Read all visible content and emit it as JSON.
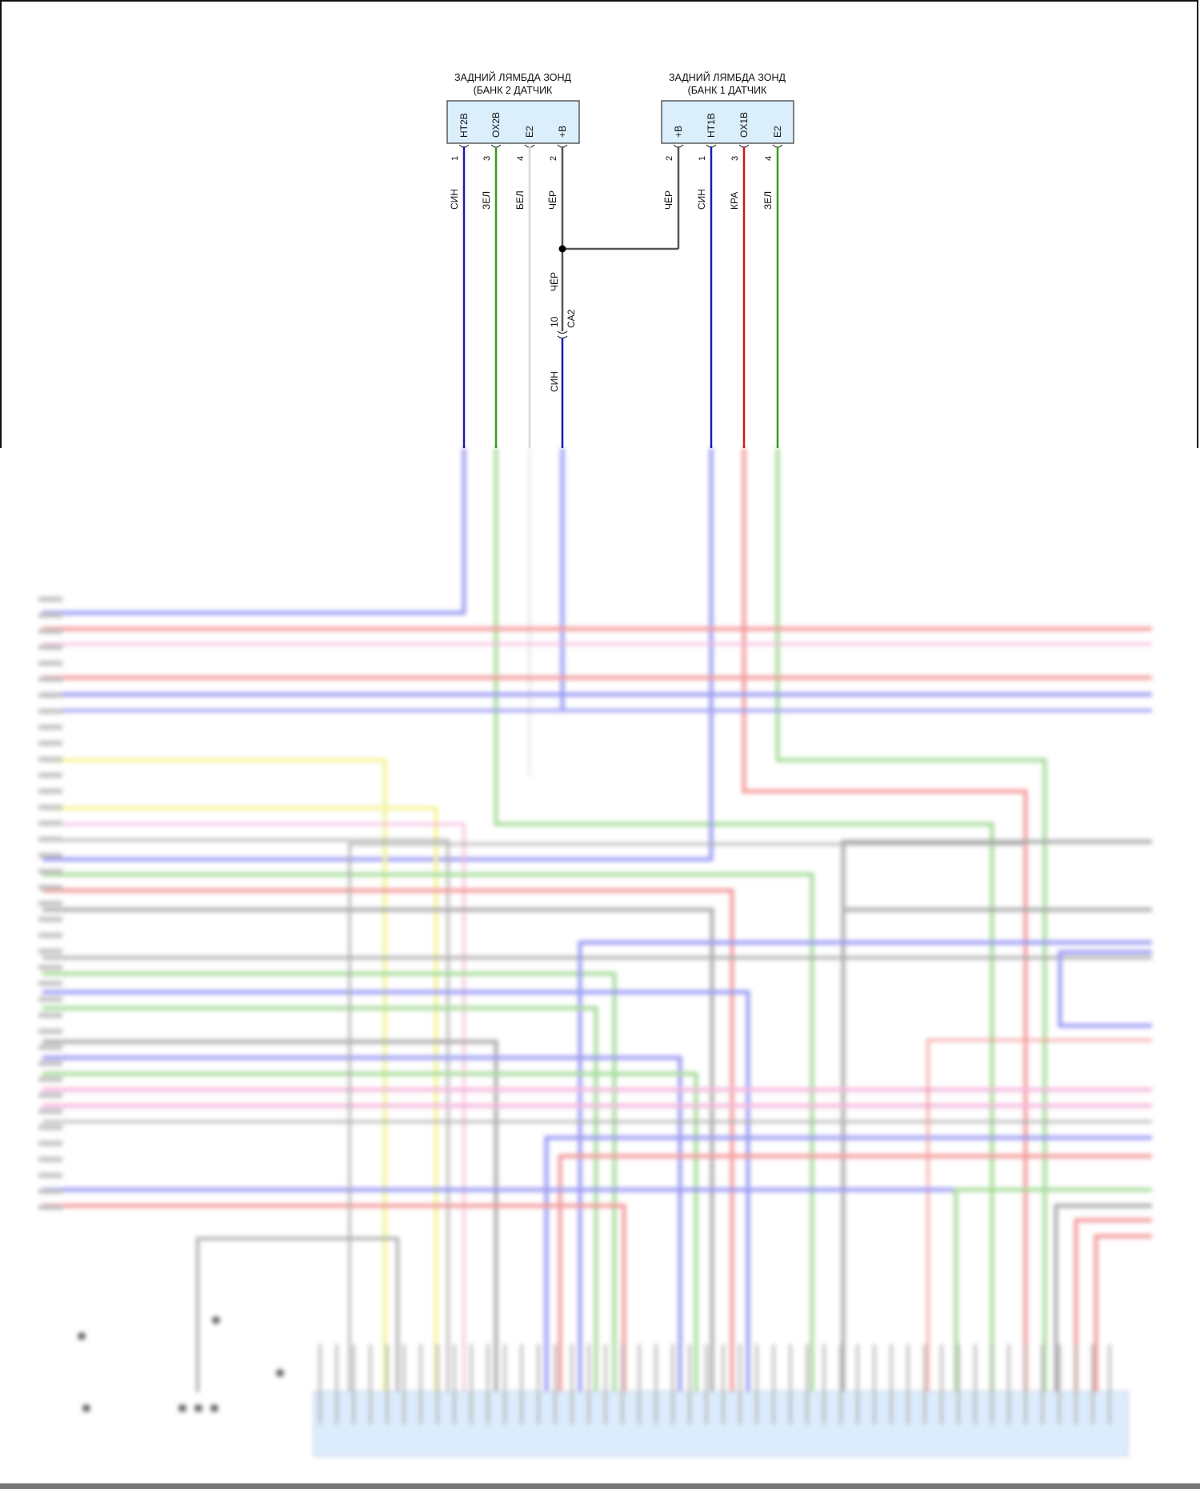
{
  "sensors": [
    {
      "title_line1": "ЗАДНИЙ ЛЯМБДА ЗОНД",
      "title_line2": "(БАНК 2 ДАТЧИК",
      "pins": [
        {
          "name": "HT2B",
          "number": "1",
          "wire_color": "СИН",
          "color": "#1a1ab4"
        },
        {
          "name": "OX2B",
          "number": "3",
          "wire_color": "ЗЕЛ",
          "color": "#3a9a1a"
        },
        {
          "name": "E2",
          "number": "4",
          "wire_color": "БЕЛ",
          "color": "#d8d8d8"
        },
        {
          "name": "+B",
          "number": "2",
          "wire_color": "ЧЁР",
          "color": "#555555"
        }
      ]
    },
    {
      "title_line1": "ЗАДНИЙ ЛЯМБДА ЗОНД",
      "title_line2": "(БАНК 1 ДАТЧИК",
      "pins": [
        {
          "name": "+B",
          "number": "2",
          "wire_color": "ЧЁР",
          "color": "#555555"
        },
        {
          "name": "HT1B",
          "number": "1",
          "wire_color": "СИН",
          "color": "#1a1ab4"
        },
        {
          "name": "OX1B",
          "number": "3",
          "wire_color": "КРА",
          "color": "#d01818"
        },
        {
          "name": "E2",
          "number": "4",
          "wire_color": "ЗЕЛ",
          "color": "#3a9a1a"
        }
      ]
    }
  ],
  "splice": {
    "upper_wire_color": "ЧЁР",
    "connector_pin": "10",
    "connector_name": "CA2",
    "lower_wire_color": "СИН"
  },
  "colors": {
    "box_fill": "#dbeefc",
    "box_stroke": "#333333"
  }
}
